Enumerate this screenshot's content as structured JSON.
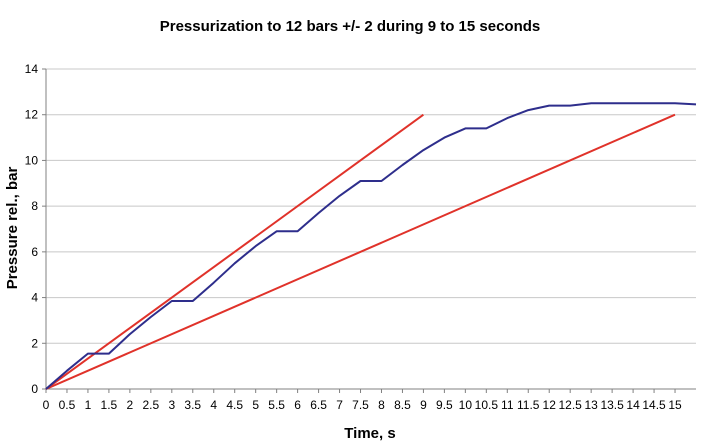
{
  "chart_data": {
    "type": "line",
    "title": "Pressurization to 12 bars +/- 2 during 9 to 15 seconds",
    "xlabel": "Time, s",
    "ylabel": "Pressure rel., bar",
    "xlim": [
      0,
      15.5
    ],
    "ylim": [
      0,
      14
    ],
    "x_ticks": [
      "0",
      "0.5",
      "1",
      "1.5",
      "2",
      "2.5",
      "3",
      "3.5",
      "4",
      "4.5",
      "5",
      "5.5",
      "6",
      "6.5",
      "7",
      "7.5",
      "8",
      "8.5",
      "9",
      "9.5",
      "10",
      "10.5",
      "11",
      "11.5",
      "12",
      "12.5",
      "13",
      "13.5",
      "14",
      "14.5",
      "15"
    ],
    "y_ticks": [
      "0",
      "2",
      "4",
      "6",
      "8",
      "10",
      "12",
      "14"
    ],
    "grid": "horizontal",
    "colors": {
      "measured": "#2e2e8c",
      "limit": "#e0322a",
      "grid": "#c8c8c8"
    },
    "series": [
      {
        "color": "#2e2e8c",
        "x": [
          0,
          0.5,
          1,
          1.5,
          2,
          2.5,
          3,
          3.5,
          4,
          4.5,
          5,
          5.5,
          6,
          6.5,
          7,
          7.5,
          8,
          8.5,
          9,
          9.5,
          10,
          10.5,
          11,
          11.5,
          12,
          12.5,
          13,
          13.5,
          14,
          14.5,
          15,
          15.5
        ],
        "y": [
          0,
          0.8,
          1.55,
          1.55,
          2.4,
          3.15,
          3.85,
          3.85,
          4.65,
          5.5,
          6.25,
          6.9,
          6.9,
          7.7,
          8.45,
          9.1,
          9.1,
          9.8,
          10.45,
          11.0,
          11.4,
          11.4,
          11.85,
          12.2,
          12.4,
          12.4,
          12.5,
          12.5,
          12.5,
          12.5,
          12.5,
          12.45
        ]
      },
      {
        "color": "#e0322a",
        "x": [
          0,
          9
        ],
        "y": [
          0,
          12
        ]
      },
      {
        "color": "#e0322a",
        "x": [
          0,
          15
        ],
        "y": [
          0,
          12
        ]
      }
    ]
  }
}
